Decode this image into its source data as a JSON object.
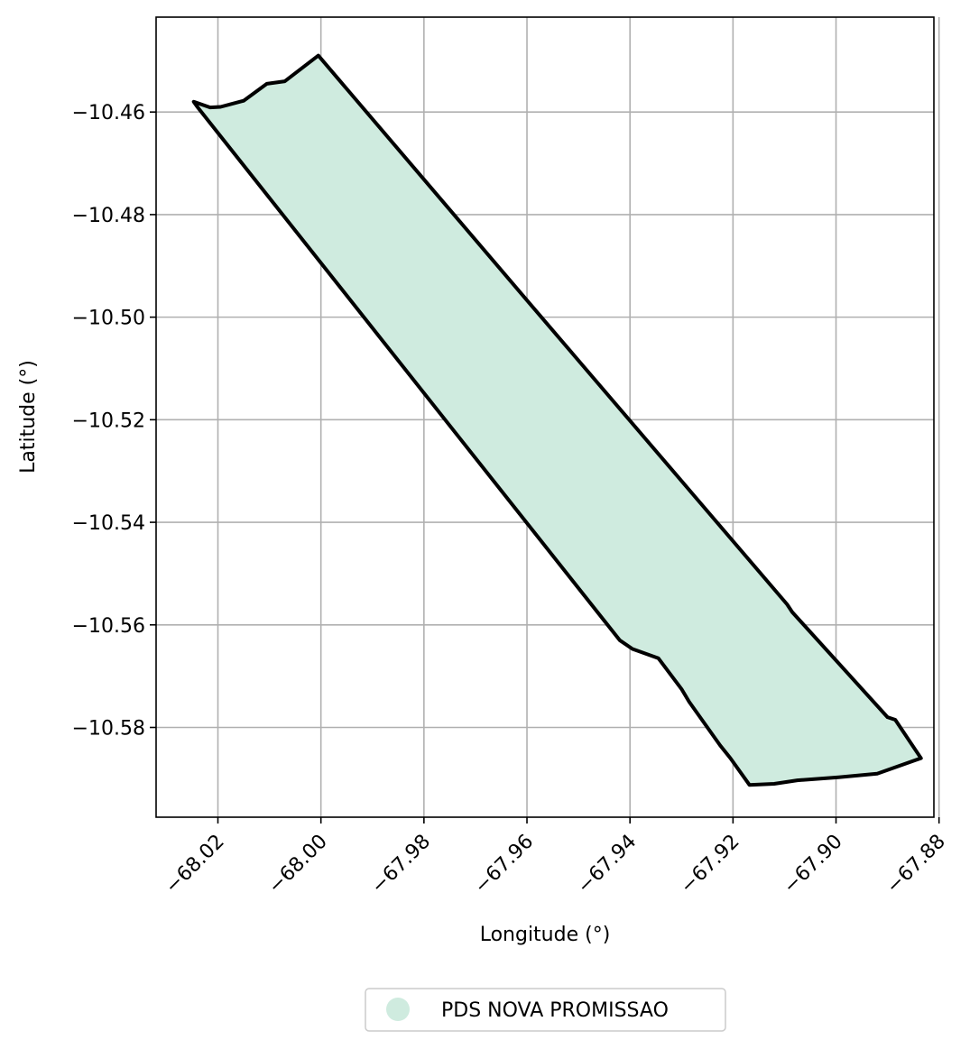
{
  "map": {
    "xlabel": "Longitude (°)",
    "ylabel": "Latitude (°)",
    "xlim": [
      -68.032,
      -67.881
    ],
    "ylim": [
      -10.5975,
      -10.4415
    ],
    "x_ticks": [
      -68.02,
      -68.0,
      -67.98,
      -67.96,
      -67.94,
      -67.92,
      -67.9,
      -67.88
    ],
    "x_tick_labels": [
      "−68.02",
      "−68.00",
      "−67.98",
      "−67.96",
      "−67.94",
      "−67.92",
      "−67.90",
      "−67.88"
    ],
    "y_ticks": [
      -10.46,
      -10.48,
      -10.5,
      -10.52,
      -10.54,
      -10.56,
      -10.58
    ],
    "y_tick_labels": [
      "−10.46",
      "−10.48",
      "−10.50",
      "−10.52",
      "−10.54",
      "−10.56",
      "−10.58"
    ],
    "grid": true,
    "fill_color": "#cfebdf",
    "edge_color": "#000000",
    "legend": {
      "placement": "bottom-center",
      "label": "PDS NOVA PROMISSAO"
    },
    "polygon": [
      [
        -68.0247,
        -10.458
      ],
      [
        -68.0215,
        -10.4591
      ],
      [
        -68.0195,
        -10.459
      ],
      [
        -68.015,
        -10.4578
      ],
      [
        -68.0105,
        -10.4545
      ],
      [
        -68.007,
        -10.454
      ],
      [
        -68.0005,
        -10.449
      ],
      [
        -67.9595,
        -10.4973
      ],
      [
        -67.9095,
        -10.556
      ],
      [
        -67.9085,
        -10.5575
      ],
      [
        -67.89,
        -10.578
      ],
      [
        -67.8885,
        -10.5785
      ],
      [
        -67.8835,
        -10.586
      ],
      [
        -67.892,
        -10.589
      ],
      [
        -67.8995,
        -10.5897
      ],
      [
        -67.9075,
        -10.5903
      ],
      [
        -67.912,
        -10.591
      ],
      [
        -67.9168,
        -10.5912
      ],
      [
        -67.9205,
        -10.586
      ],
      [
        -67.9225,
        -10.5835
      ],
      [
        -67.9285,
        -10.575
      ],
      [
        -67.93,
        -10.5725
      ],
      [
        -67.9345,
        -10.5665
      ],
      [
        -67.9395,
        -10.5647
      ],
      [
        -67.942,
        -10.563
      ],
      [
        -68.024,
        -10.459
      ]
    ]
  }
}
